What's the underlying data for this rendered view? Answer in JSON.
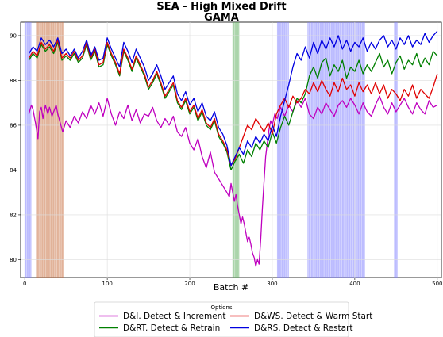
{
  "chart_data": {
    "type": "line",
    "title": "SEA - High Mixed Drift",
    "subtitle": "GAMA",
    "xlabel": "Batch #",
    "ylabel": "",
    "xlim": [
      -5,
      505
    ],
    "ylim": [
      79.2,
      90.6
    ],
    "xticks": [
      0,
      100,
      200,
      300,
      400,
      500
    ],
    "yticks": [
      80,
      82,
      84,
      86,
      88,
      90
    ],
    "ytick_labels": [
      "80",
      "82",
      "84",
      "86",
      "88",
      "90"
    ],
    "grid": true,
    "legend": {
      "title": "Options",
      "placement": "bottom-center",
      "columns": 2
    },
    "series": [
      {
        "name": "D&I. Detect & Increment",
        "color": "#bf00bf",
        "x": [
          5,
          8,
          10,
          13,
          16,
          18,
          20,
          22,
          25,
          28,
          30,
          33,
          35,
          38,
          40,
          43,
          46,
          50,
          55,
          60,
          65,
          70,
          75,
          80,
          85,
          90,
          95,
          100,
          105,
          110,
          115,
          120,
          125,
          130,
          135,
          140,
          145,
          150,
          155,
          160,
          165,
          170,
          175,
          180,
          185,
          190,
          195,
          200,
          205,
          210,
          215,
          220,
          225,
          230,
          235,
          240,
          245,
          248,
          250,
          252,
          254,
          256,
          258,
          260,
          262,
          264,
          266,
          268,
          270,
          272,
          274,
          276,
          278,
          280,
          282,
          284,
          286,
          288,
          290,
          292,
          294,
          296,
          298,
          300,
          303,
          306,
          310,
          315,
          320,
          325,
          330,
          335,
          340,
          345,
          350,
          355,
          360,
          365,
          370,
          375,
          380,
          385,
          390,
          395,
          400,
          405,
          410,
          415,
          420,
          425,
          430,
          435,
          440,
          445,
          450,
          455,
          460,
          465,
          470,
          475,
          480,
          485,
          490,
          495,
          500
        ],
        "values": [
          86.5,
          86.9,
          86.7,
          86.1,
          85.4,
          86.6,
          86.8,
          86.3,
          86.9,
          86.5,
          86.8,
          86.4,
          86.6,
          86.9,
          86.5,
          86.1,
          85.7,
          86.2,
          85.9,
          86.4,
          86.1,
          86.6,
          86.3,
          86.9,
          86.5,
          87.0,
          86.4,
          87.2,
          86.5,
          86.0,
          86.6,
          86.3,
          86.9,
          86.2,
          86.7,
          86.1,
          86.5,
          86.4,
          86.8,
          86.2,
          85.9,
          86.3,
          86.0,
          86.4,
          85.7,
          85.5,
          85.9,
          85.2,
          84.9,
          85.4,
          84.6,
          84.1,
          84.8,
          83.9,
          83.6,
          83.3,
          83.0,
          82.8,
          83.4,
          83.0,
          82.6,
          82.9,
          82.4,
          82.0,
          81.6,
          81.9,
          81.6,
          81.2,
          80.8,
          81.0,
          80.7,
          80.3,
          80.1,
          79.7,
          80.0,
          79.8,
          80.9,
          82.3,
          83.5,
          84.6,
          85.2,
          85.8,
          86.2,
          86.0,
          86.5,
          86.3,
          86.8,
          86.4,
          86.9,
          86.6,
          87.1,
          86.8,
          87.2,
          86.5,
          86.3,
          86.8,
          86.5,
          87.0,
          86.7,
          86.4,
          86.9,
          87.1,
          86.8,
          87.2,
          86.9,
          86.5,
          87.0,
          86.6,
          86.4,
          86.9,
          87.3,
          86.8,
          86.5,
          87.0,
          86.6,
          86.9,
          87.2,
          86.8,
          86.5,
          87.0,
          86.7,
          86.5,
          87.1,
          86.8,
          86.9
        ]
      },
      {
        "name": "D&RT. Detect & Retrain",
        "color": "#008000",
        "x": [
          5,
          10,
          15,
          20,
          25,
          30,
          35,
          40,
          45,
          50,
          55,
          60,
          65,
          70,
          75,
          80,
          85,
          90,
          95,
          100,
          105,
          110,
          115,
          120,
          125,
          130,
          135,
          140,
          145,
          150,
          155,
          160,
          165,
          170,
          175,
          180,
          185,
          190,
          195,
          200,
          205,
          210,
          215,
          220,
          225,
          230,
          235,
          240,
          245,
          250,
          255,
          260,
          265,
          270,
          275,
          280,
          285,
          290,
          295,
          300,
          305,
          310,
          315,
          320,
          325,
          330,
          335,
          340,
          345,
          350,
          355,
          360,
          365,
          370,
          375,
          380,
          385,
          390,
          395,
          400,
          405,
          410,
          415,
          420,
          425,
          430,
          435,
          440,
          445,
          450,
          455,
          460,
          465,
          470,
          475,
          480,
          485,
          490,
          495,
          500
        ],
        "values": [
          88.9,
          89.2,
          89.0,
          89.6,
          89.3,
          89.5,
          89.2,
          89.7,
          88.9,
          89.1,
          88.9,
          89.2,
          88.8,
          89.0,
          89.6,
          88.9,
          89.3,
          88.6,
          88.7,
          89.6,
          89.1,
          88.7,
          88.2,
          89.3,
          88.9,
          88.4,
          89.0,
          88.6,
          88.2,
          87.6,
          87.9,
          88.3,
          87.8,
          87.2,
          87.5,
          87.8,
          87.0,
          86.7,
          87.1,
          86.5,
          86.8,
          86.2,
          86.6,
          86.0,
          85.8,
          86.2,
          85.5,
          85.2,
          84.8,
          84.0,
          84.4,
          84.7,
          84.3,
          84.9,
          84.6,
          85.2,
          84.9,
          85.3,
          85.0,
          85.7,
          85.2,
          85.9,
          86.4,
          86.0,
          86.6,
          87.2,
          87.0,
          87.4,
          88.2,
          88.6,
          88.1,
          88.8,
          89.0,
          88.2,
          88.7,
          88.4,
          88.9,
          88.1,
          88.6,
          88.4,
          88.9,
          88.3,
          88.7,
          88.4,
          88.8,
          89.2,
          88.6,
          88.9,
          88.3,
          88.8,
          89.1,
          88.5,
          88.9,
          88.7,
          89.2,
          88.6,
          89.0,
          88.7,
          89.3,
          89.1
        ]
      },
      {
        "name": "D&WS. Detect & Warm Start",
        "color": "#e00000",
        "x": [
          5,
          10,
          15,
          20,
          25,
          30,
          35,
          40,
          45,
          50,
          55,
          60,
          65,
          70,
          75,
          80,
          85,
          90,
          95,
          100,
          105,
          110,
          115,
          120,
          125,
          130,
          135,
          140,
          145,
          150,
          155,
          160,
          165,
          170,
          175,
          180,
          185,
          190,
          195,
          200,
          205,
          210,
          215,
          220,
          225,
          230,
          235,
          240,
          245,
          250,
          255,
          260,
          265,
          270,
          275,
          280,
          285,
          290,
          295,
          300,
          305,
          310,
          315,
          320,
          325,
          330,
          335,
          340,
          345,
          350,
          355,
          360,
          365,
          370,
          375,
          380,
          385,
          390,
          395,
          400,
          405,
          410,
          415,
          420,
          425,
          430,
          435,
          440,
          445,
          450,
          455,
          460,
          465,
          470,
          475,
          480,
          485,
          490,
          495,
          500
        ],
        "values": [
          89.0,
          89.3,
          89.1,
          89.7,
          89.4,
          89.6,
          89.3,
          89.8,
          89.0,
          89.2,
          89.0,
          89.3,
          88.9,
          89.1,
          89.7,
          89.0,
          89.4,
          88.7,
          88.8,
          89.7,
          89.2,
          88.8,
          88.3,
          89.4,
          89.0,
          88.5,
          89.1,
          88.7,
          88.3,
          87.7,
          88.0,
          88.4,
          87.9,
          87.3,
          87.6,
          87.9,
          87.1,
          86.8,
          87.2,
          86.6,
          86.9,
          86.3,
          86.7,
          86.1,
          85.9,
          86.3,
          85.6,
          85.3,
          84.9,
          84.2,
          84.5,
          85.0,
          85.5,
          86.0,
          85.8,
          86.3,
          86.0,
          85.7,
          86.1,
          85.6,
          86.5,
          86.9,
          87.2,
          86.8,
          87.3,
          87.0,
          87.2,
          87.6,
          87.4,
          87.9,
          87.5,
          88.0,
          87.6,
          87.3,
          87.9,
          87.5,
          88.1,
          87.6,
          87.8,
          87.3,
          87.9,
          87.5,
          87.8,
          87.4,
          87.9,
          87.4,
          87.8,
          87.2,
          87.6,
          87.4,
          87.1,
          87.6,
          87.3,
          87.8,
          87.2,
          87.6,
          87.4,
          87.2,
          87.7,
          88.3
        ]
      },
      {
        "name": "D&RS. Detect & Restart",
        "color": "#0000e0",
        "x": [
          5,
          10,
          15,
          20,
          25,
          30,
          35,
          40,
          45,
          50,
          55,
          60,
          65,
          70,
          75,
          80,
          85,
          90,
          95,
          100,
          105,
          110,
          115,
          120,
          125,
          130,
          135,
          140,
          145,
          150,
          155,
          160,
          165,
          170,
          175,
          180,
          185,
          190,
          195,
          200,
          205,
          210,
          215,
          220,
          225,
          230,
          235,
          240,
          245,
          250,
          255,
          260,
          265,
          270,
          275,
          280,
          285,
          290,
          295,
          300,
          305,
          310,
          315,
          320,
          325,
          330,
          335,
          340,
          345,
          350,
          355,
          360,
          365,
          370,
          375,
          380,
          385,
          390,
          395,
          400,
          405,
          410,
          415,
          420,
          425,
          430,
          435,
          440,
          445,
          450,
          455,
          460,
          465,
          470,
          475,
          480,
          485,
          490,
          495,
          500
        ],
        "values": [
          89.2,
          89.5,
          89.3,
          89.9,
          89.6,
          89.8,
          89.5,
          89.9,
          89.2,
          89.4,
          89.1,
          89.4,
          89.0,
          89.3,
          89.8,
          89.1,
          89.5,
          88.9,
          89.0,
          89.9,
          89.4,
          89.0,
          88.6,
          89.7,
          89.3,
          88.8,
          89.4,
          89.0,
          88.6,
          88.0,
          88.3,
          88.7,
          88.2,
          87.6,
          87.9,
          88.2,
          87.4,
          87.1,
          87.5,
          86.9,
          87.2,
          86.6,
          87.0,
          86.4,
          86.2,
          86.6,
          85.9,
          85.6,
          85.1,
          84.2,
          84.6,
          85.0,
          84.7,
          85.3,
          85.0,
          85.5,
          85.2,
          85.6,
          85.3,
          86.0,
          85.5,
          86.4,
          87.1,
          87.8,
          88.6,
          89.2,
          88.9,
          89.5,
          89.0,
          89.7,
          89.2,
          89.8,
          89.4,
          89.9,
          89.5,
          90.0,
          89.4,
          89.8,
          89.3,
          89.7,
          89.5,
          89.9,
          89.3,
          89.7,
          89.4,
          89.8,
          90.0,
          89.5,
          89.8,
          89.4,
          89.9,
          89.6,
          90.0,
          89.5,
          89.8,
          89.6,
          90.1,
          89.7,
          90.0,
          90.2
        ]
      }
    ],
    "shaded_regions": [
      {
        "from": 0,
        "to": 8,
        "color": "#8080ff"
      },
      {
        "from": 14,
        "to": 47,
        "color": "#c87040"
      },
      {
        "from": 252,
        "to": 260,
        "color": "#60b060"
      },
      {
        "from": 306,
        "to": 320,
        "color": "#8080ff"
      },
      {
        "from": 343,
        "to": 412,
        "color": "#8080ff"
      },
      {
        "from": 448,
        "to": 452,
        "color": "#8080ff"
      }
    ]
  }
}
